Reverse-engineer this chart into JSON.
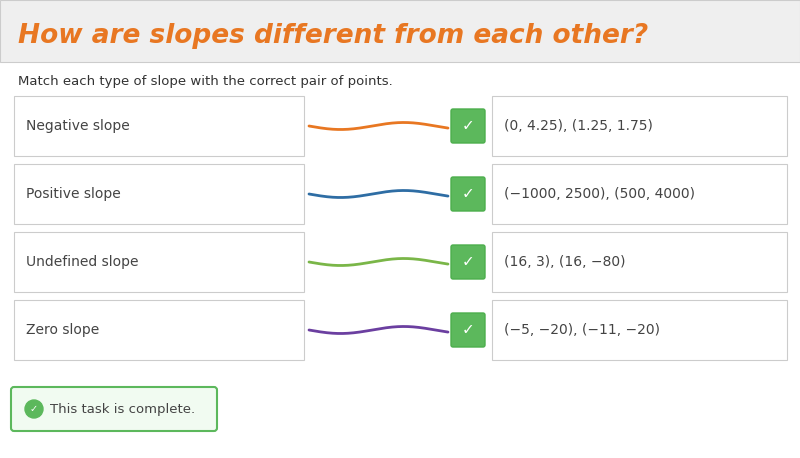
{
  "title": "How are slopes different from each other?",
  "subtitle": "Match each type of slope with the correct pair of points.",
  "title_color": "#E87722",
  "background_color": "#FFFFFF",
  "header_bg": "#EFEFEF",
  "header_border": "#CCCCCC",
  "rows": [
    {
      "label": "Negative slope",
      "line_color": "#E87722",
      "points_text": "(0, 4.25), (1.25, 1.75)"
    },
    {
      "label": "Positive slope",
      "line_color": "#2E6DA4",
      "points_text": "(−1000, 2500), (500, 4000)"
    },
    {
      "label": "Undefined slope",
      "line_color": "#7AB648",
      "points_text": "(16, 3), (16, −80)"
    },
    {
      "label": "Zero slope",
      "line_color": "#6B3FA0",
      "points_text": "(−5, −20), (−11, −20)"
    }
  ],
  "check_bg": "#5CB85C",
  "check_border": "#4CAE4C",
  "complete_text": "This task is complete.",
  "complete_bg": "#F1FBF1",
  "complete_border": "#5CB85C",
  "complete_icon_color": "#5CB85C",
  "box_border": "#CCCCCC",
  "box_bg": "#FFFFFF"
}
